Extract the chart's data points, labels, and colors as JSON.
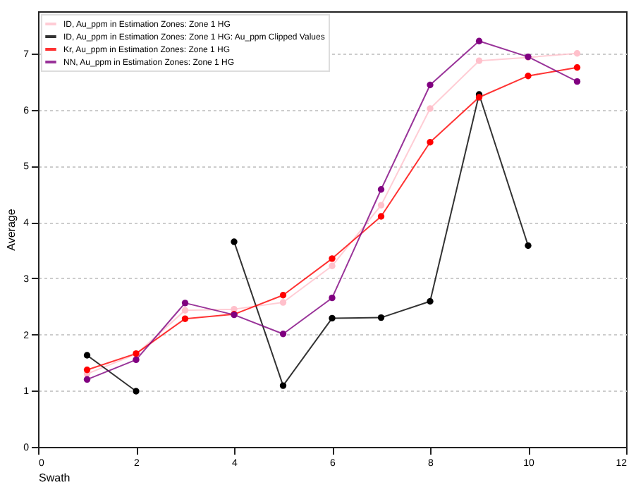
{
  "chart_data": {
    "type": "line",
    "xlabel": "Swath",
    "ylabel": "Average",
    "x": [
      1,
      2,
      3,
      4,
      5,
      6,
      7,
      8,
      9,
      10,
      11
    ],
    "xlim": [
      0,
      12
    ],
    "xticks": [
      0,
      2,
      4,
      6,
      8,
      10,
      12
    ],
    "ylim": [
      0,
      7.75
    ],
    "yticks": [
      0,
      1,
      2,
      3,
      4,
      5,
      6,
      7
    ],
    "grid": "y",
    "legend": "top left",
    "marker": "circle",
    "line_style": "solid",
    "series": [
      {
        "name": "ID, Au_ppm in Estimation Zones: Zone 1 HG",
        "color": "#ffc0cb",
        "values": [
          1.3,
          1.65,
          2.43,
          2.45,
          2.57,
          3.22,
          4.3,
          6.02,
          6.87,
          6.93,
          7.0
        ]
      },
      {
        "name": "ID, Au_ppm in Estimation Zones: Zone 1 HG: Au_ppm Clipped Values",
        "color": "#000000",
        "values": [
          1.63,
          0.99,
          null,
          3.65,
          1.09,
          2.29,
          2.3,
          2.59,
          6.27,
          3.58,
          null
        ]
      },
      {
        "name": "Kr, Au_ppm in Estimation Zones: Zone 1 HG",
        "color": "#ff0000",
        "values": [
          1.37,
          1.66,
          2.28,
          2.36,
          2.7,
          3.35,
          4.1,
          5.42,
          6.22,
          6.6,
          6.75
        ]
      },
      {
        "name": "NN, Au_ppm in Estimation Zones: Zone 1 HG",
        "color": "#800080",
        "values": [
          1.2,
          1.55,
          2.56,
          2.35,
          2.01,
          2.65,
          4.58,
          6.44,
          7.22,
          6.94,
          6.5
        ]
      }
    ]
  }
}
